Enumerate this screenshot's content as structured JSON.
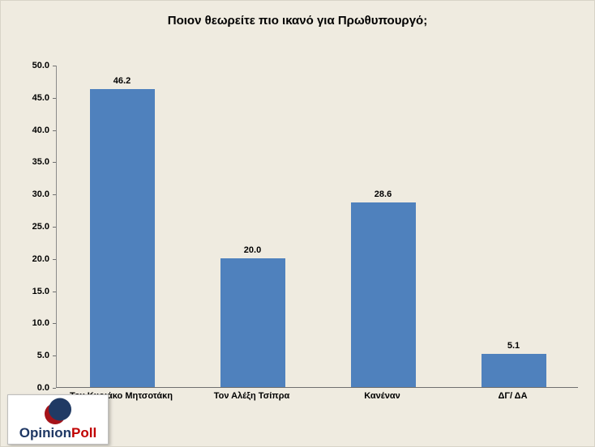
{
  "chart_data": {
    "type": "bar",
    "title": "Ποιον θεωρείτε πιο ικανό για Πρωθυπουργό;",
    "categories": [
      "Τον Κυριάκο Μητσοτάκη",
      "Τον Αλέξη Τσίπρα",
      "Κανέναν",
      "ΔΓ/ ΔΑ"
    ],
    "values": [
      46.2,
      20.0,
      28.6,
      5.1
    ],
    "value_labels": [
      "46.2",
      "20.0",
      "28.6",
      "5.1"
    ],
    "xlabel": "",
    "ylabel": "",
    "ylim": [
      0,
      50
    ],
    "ytick_step": 5,
    "ytick_labels": [
      "0.0",
      "5.0",
      "10.0",
      "15.0",
      "20.0",
      "25.0",
      "30.0",
      "35.0",
      "40.0",
      "45.0",
      "50.0"
    ],
    "grid": false,
    "legend": "none",
    "bar_color": "#4f81bd",
    "background_color": "#efebe0"
  },
  "logo": {
    "text_primary": "Opinion",
    "text_secondary": "Poll",
    "color_primary": "#1f3864",
    "color_secondary": "#c00000"
  }
}
